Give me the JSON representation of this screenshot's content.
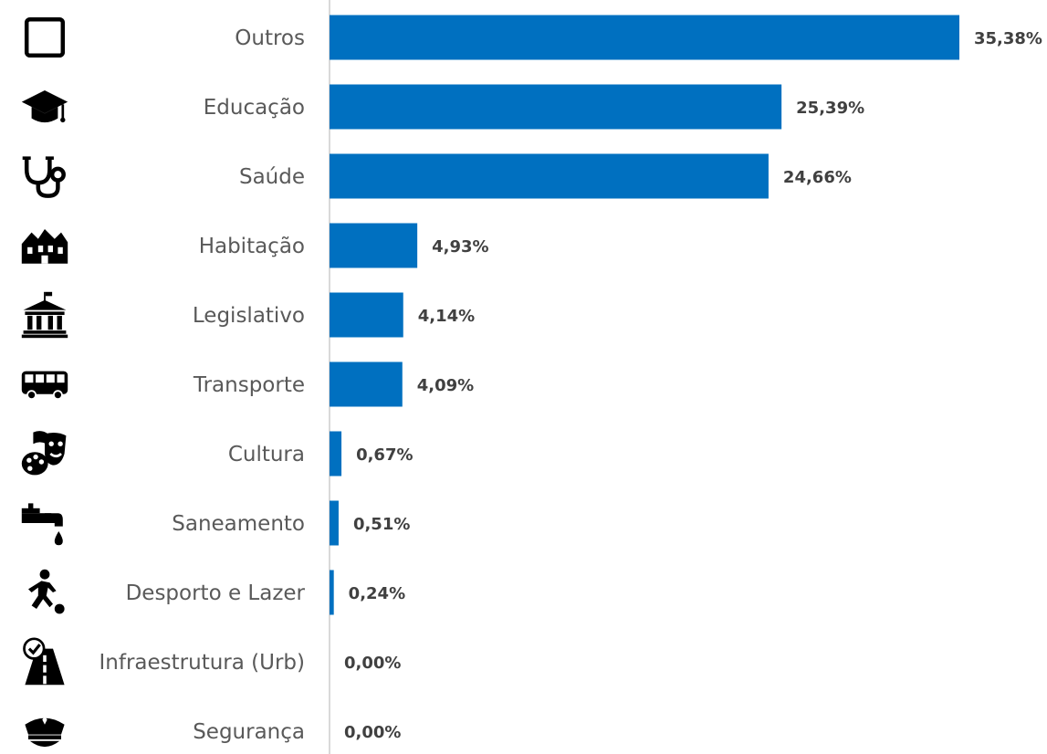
{
  "chart_data": {
    "type": "bar",
    "orientation": "horizontal",
    "categories": [
      "Outros",
      "Educação",
      "Saúde",
      "Habitação",
      "Legislativo",
      "Transporte",
      "Cultura",
      "Saneamento",
      "Desporto e Lazer",
      "Infraestrutura (Urb)",
      "Segurança"
    ],
    "values": [
      35.38,
      25.39,
      24.66,
      4.93,
      4.14,
      4.09,
      0.67,
      0.51,
      0.24,
      0.0,
      0.0
    ],
    "value_labels": [
      "35,38%",
      "25,39%",
      "24,66%",
      "4,93%",
      "4,14%",
      "4,09%",
      "0,67%",
      "0,51%",
      "0,24%",
      "0,00%",
      "0,00%"
    ],
    "icons": [
      "square-outline-icon",
      "graduation-cap-icon",
      "stethoscope-icon",
      "houses-icon",
      "government-building-icon",
      "bus-icon",
      "theater-masks-palette-icon",
      "water-faucet-icon",
      "soccer-player-icon",
      "road-check-icon",
      "police-cap-icon"
    ],
    "bar_color": "#0070C0",
    "axis_color": "#D9D9D9",
    "xlim": [
      0,
      35.38
    ],
    "legend": "none",
    "grid": false
  }
}
